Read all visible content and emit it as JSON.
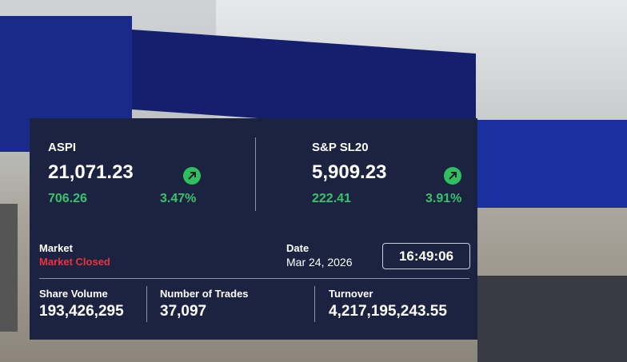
{
  "indices": [
    {
      "name": "ASPI",
      "value": "21,071.23",
      "change": "706.26",
      "percent": "3.47%"
    },
    {
      "name": "S&P SL20",
      "value": "5,909.23",
      "change": "222.41",
      "percent": "3.91%"
    }
  ],
  "market": {
    "label": "Market",
    "status": "Market Closed"
  },
  "date": {
    "label": "Date",
    "value": "Mar 24, 2026"
  },
  "time": "16:49:06",
  "stats": [
    {
      "label": "Share Volume",
      "value": "193,426,295"
    },
    {
      "label": "Number of Trades",
      "value": "37,097"
    },
    {
      "label": "Turnover",
      "value": "4,217,195,243.55"
    }
  ]
}
